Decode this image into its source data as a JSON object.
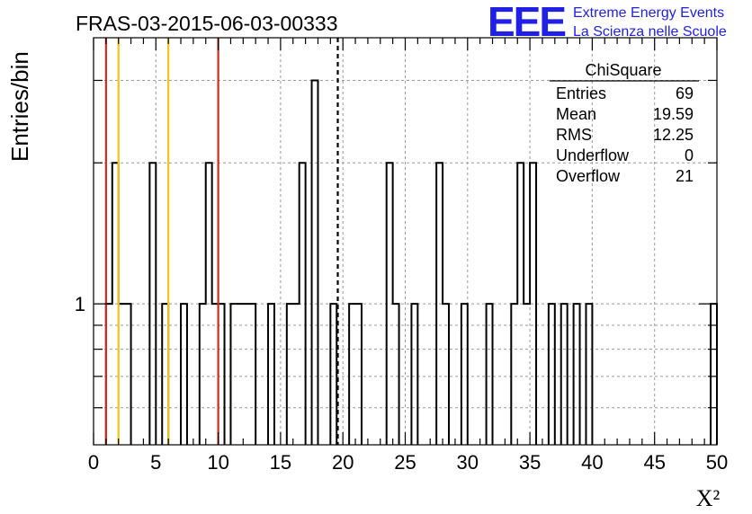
{
  "chart_data": {
    "type": "histogram",
    "title": "FRAS-03-2015-06-03-00333",
    "xlabel": "X²",
    "ylabel": "Entries/bin",
    "xlim": [
      0,
      50
    ],
    "y_scale": "log",
    "ylim": [
      0.5,
      3.7
    ],
    "x_ticks": [
      0,
      5,
      10,
      15,
      20,
      25,
      30,
      35,
      40,
      45,
      50
    ],
    "y_tick_labels": [
      {
        "value": 1,
        "label": "1"
      }
    ],
    "grid": true,
    "bin_width": 0.5,
    "bins": [
      {
        "x": 1.0,
        "count": 1
      },
      {
        "x": 1.5,
        "count": 2
      },
      {
        "x": 2.0,
        "count": 1
      },
      {
        "x": 2.5,
        "count": 1
      },
      {
        "x": 4.5,
        "count": 2
      },
      {
        "x": 5.5,
        "count": 1
      },
      {
        "x": 7.0,
        "count": 1
      },
      {
        "x": 8.5,
        "count": 1
      },
      {
        "x": 9.0,
        "count": 2
      },
      {
        "x": 9.5,
        "count": 1
      },
      {
        "x": 10.0,
        "count": 1
      },
      {
        "x": 11.0,
        "count": 1
      },
      {
        "x": 11.5,
        "count": 1
      },
      {
        "x": 12.0,
        "count": 1
      },
      {
        "x": 12.5,
        "count": 1
      },
      {
        "x": 14.0,
        "count": 1
      },
      {
        "x": 15.5,
        "count": 1
      },
      {
        "x": 16.0,
        "count": 1
      },
      {
        "x": 16.5,
        "count": 2
      },
      {
        "x": 17.5,
        "count": 3
      },
      {
        "x": 19.0,
        "count": 1
      },
      {
        "x": 20.5,
        "count": 1
      },
      {
        "x": 21.0,
        "count": 1
      },
      {
        "x": 23.5,
        "count": 2
      },
      {
        "x": 24.0,
        "count": 1
      },
      {
        "x": 25.5,
        "count": 1
      },
      {
        "x": 27.5,
        "count": 2
      },
      {
        "x": 28.0,
        "count": 1
      },
      {
        "x": 29.5,
        "count": 1
      },
      {
        "x": 31.5,
        "count": 1
      },
      {
        "x": 33.5,
        "count": 1
      },
      {
        "x": 34.0,
        "count": 2
      },
      {
        "x": 34.5,
        "count": 1
      },
      {
        "x": 35.0,
        "count": 2
      },
      {
        "x": 36.5,
        "count": 1
      },
      {
        "x": 37.5,
        "count": 1
      },
      {
        "x": 38.5,
        "count": 1
      },
      {
        "x": 39.5,
        "count": 1
      },
      {
        "x": 49.5,
        "count": 1
      }
    ],
    "reference_lines": [
      {
        "x": 1.0,
        "color": "#d42a1e",
        "style": "solid"
      },
      {
        "x": 2.0,
        "color": "#f2c318",
        "style": "solid"
      },
      {
        "x": 6.0,
        "color": "#f2c318",
        "style": "solid"
      },
      {
        "x": 10.0,
        "color": "#d42a1e",
        "style": "solid"
      },
      {
        "x": 19.59,
        "color": "#000000",
        "style": "dashed"
      }
    ],
    "stats_box": {
      "title": "ChiSquare",
      "rows": [
        {
          "label": "Entries",
          "value": "69"
        },
        {
          "label": "Mean",
          "value": "19.59"
        },
        {
          "label": "RMS",
          "value": "12.25"
        },
        {
          "label": "Underflow",
          "value": "0"
        },
        {
          "label": "Overflow",
          "value": "21"
        }
      ]
    }
  },
  "logo": {
    "mark": "EEE",
    "line1": "Extreme Energy Events",
    "line2": "La Scienza nelle Scuole",
    "color": "#1f1fe6"
  },
  "colors": {
    "red_line": "#d42a1e",
    "yellow_line": "#f2c318",
    "grid": "#9a9a9a"
  }
}
